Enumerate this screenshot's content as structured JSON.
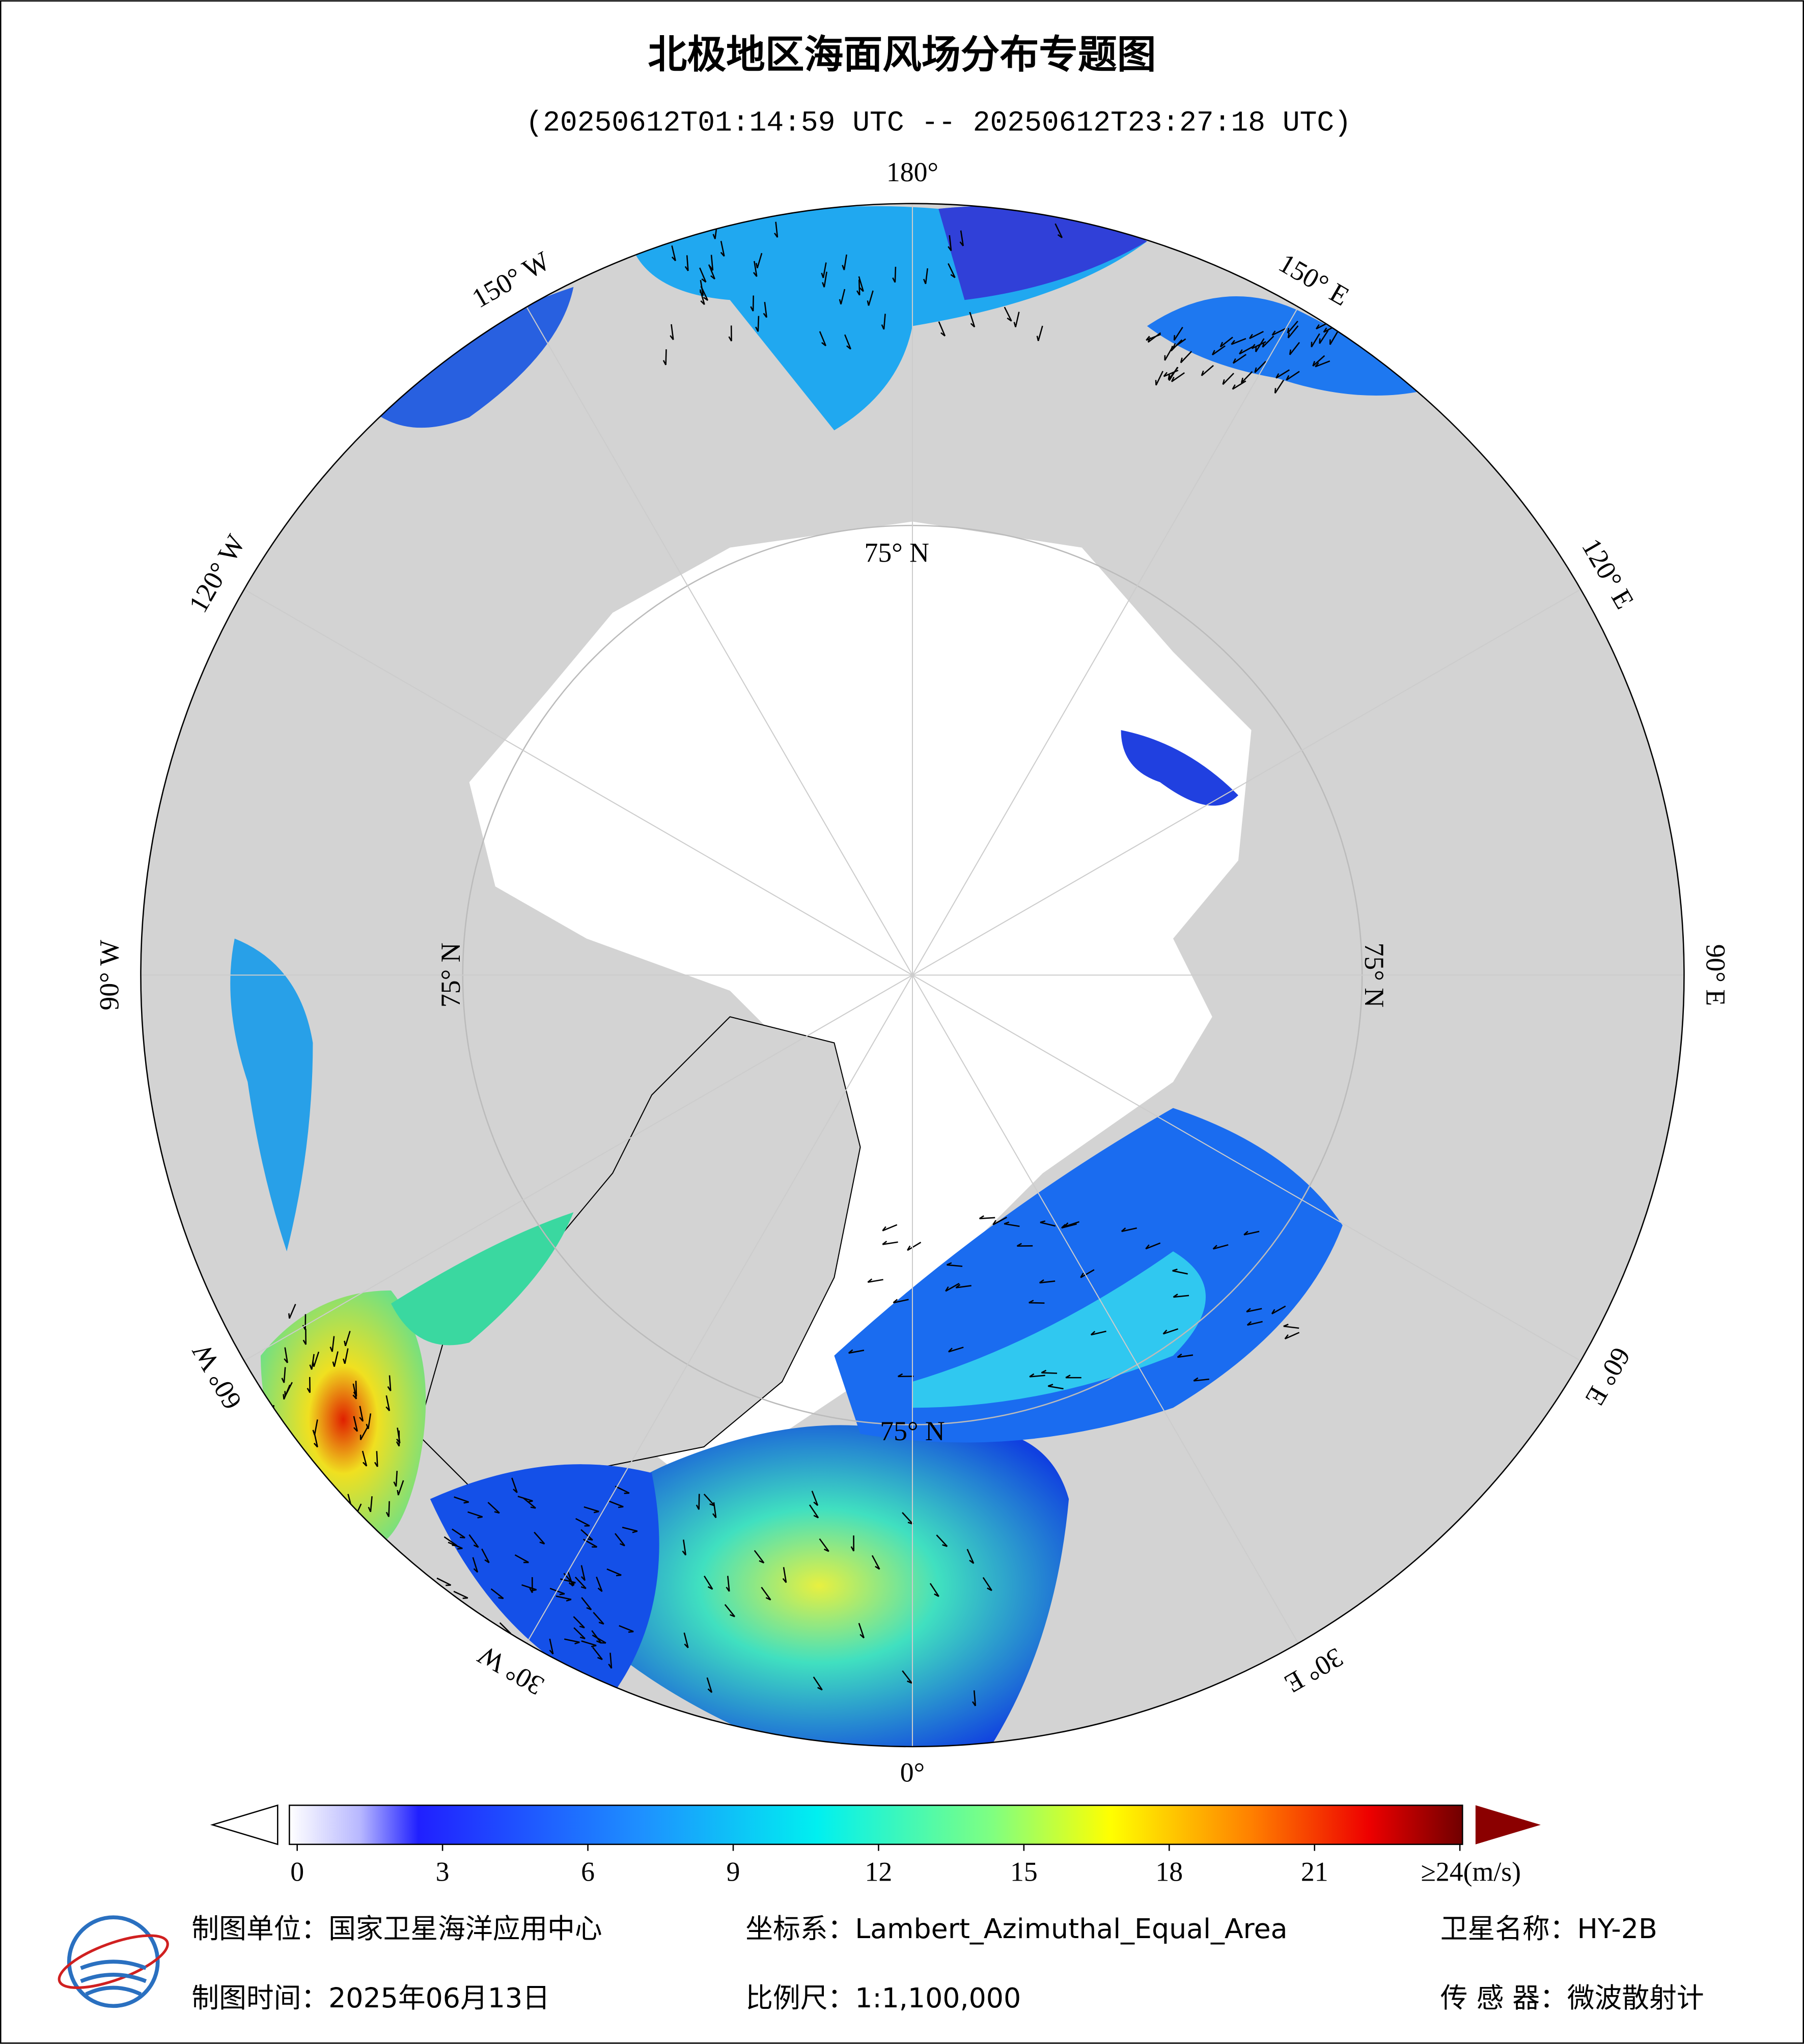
{
  "header": {
    "title": "北极地区海面风场分布专题图",
    "subtitle": "(20250612T01:14:59 UTC -- 20250612T23:27:18 UTC)"
  },
  "map": {
    "longitude_labels": [
      {
        "value": 180,
        "label": "180°"
      },
      {
        "value": 150,
        "label": "150° E"
      },
      {
        "value": 120,
        "label": "120° E"
      },
      {
        "value": 90,
        "label": "90° E"
      },
      {
        "value": 60,
        "label": "60° E"
      },
      {
        "value": 30,
        "label": "30° E"
      },
      {
        "value": 0,
        "label": "0°"
      },
      {
        "value": -30,
        "label": "30° W"
      },
      {
        "value": -60,
        "label": "60° W"
      },
      {
        "value": -90,
        "label": "90° W"
      },
      {
        "value": -120,
        "label": "120° W"
      },
      {
        "value": -150,
        "label": "150° W"
      }
    ],
    "latitude_label": {
      "value": 75,
      "label": "75° N"
    }
  },
  "colorbar": {
    "lim": [
      0,
      24
    ],
    "ticks": [
      0,
      3,
      6,
      9,
      12,
      15,
      18,
      21,
      {
        "value": 24,
        "label": "≥24(m/s)"
      }
    ]
  },
  "footer": {
    "unit": "制图单位：国家卫星海洋应用中心",
    "projection": "坐标系：Lambert_Azimuthal_Equal_Area",
    "satellite": "卫星名称：HY-2B",
    "date": "制图时间：2025年06月13日",
    "scale": "比例尺：1:1,100,000",
    "sensor": "传 感 器：微波散射计"
  }
}
